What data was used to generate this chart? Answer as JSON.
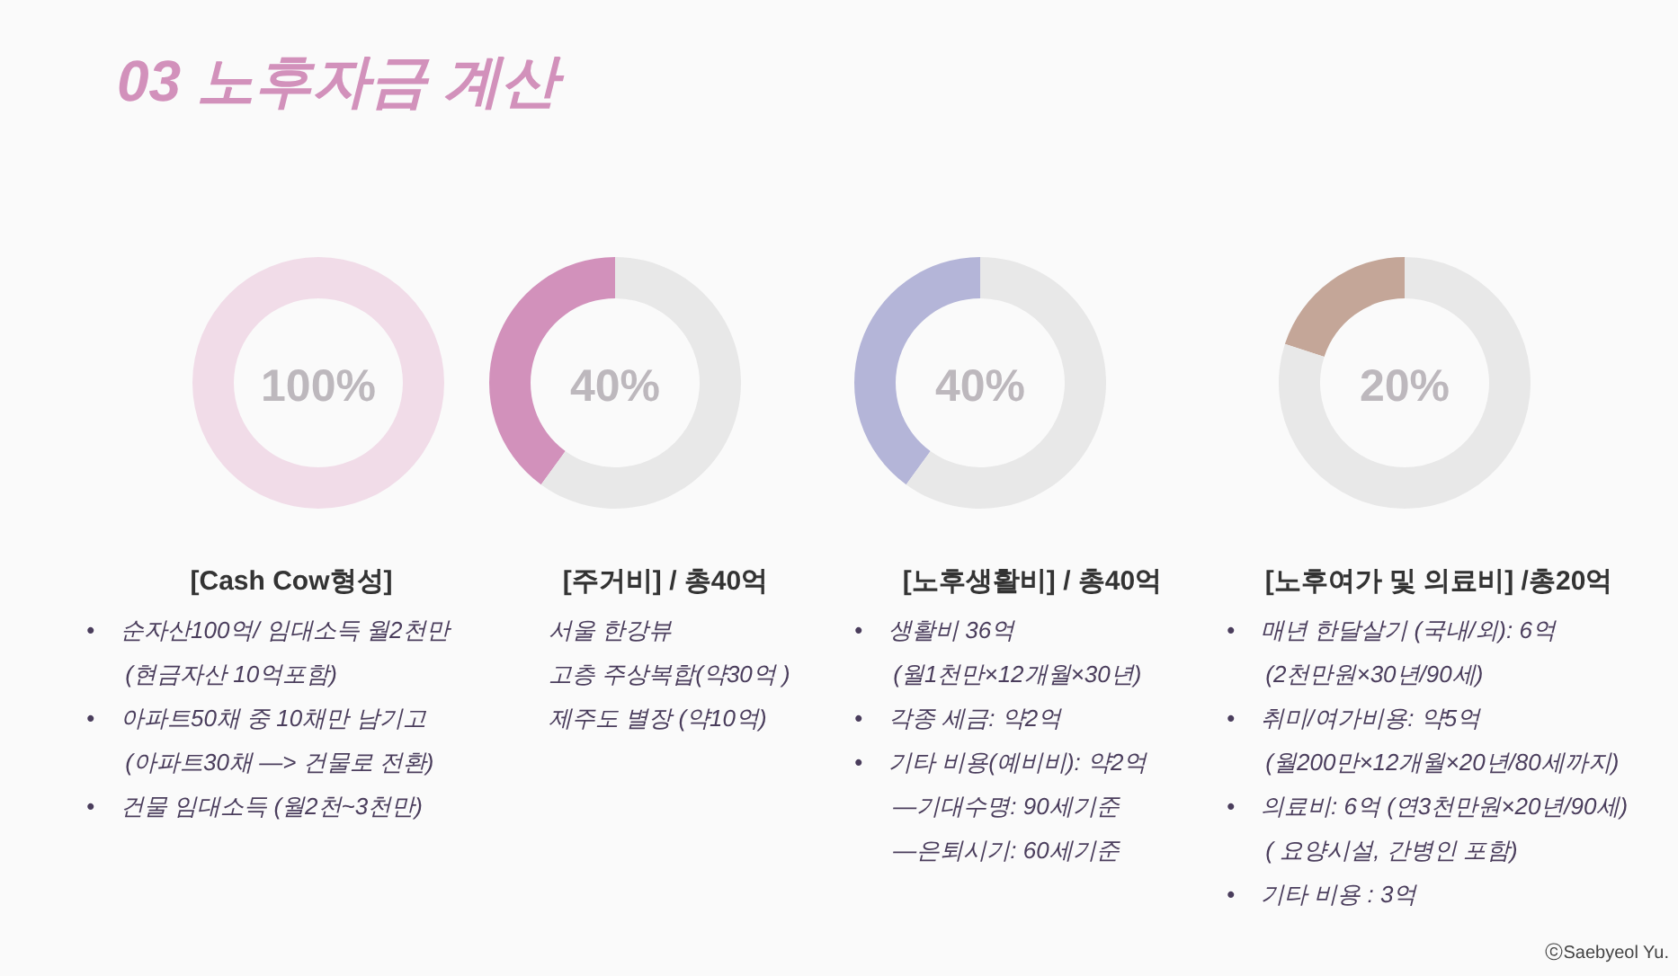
{
  "chart_data": [
    {
      "type": "donut",
      "title": "[Cash Cow형성]",
      "categories": [
        null
      ],
      "values": [
        100
      ],
      "colors": [
        "#f1dce8"
      ],
      "annotations": [
        "100%",
        "03 노후자금 계산",
        "•    순자산100억/ 임대소득 월2천만",
        "      (현금자산 10억포함)",
        "•    아파트50채 중 10채만 남기고",
        "      (아파트30채 —> 건물로 전환)",
        "•    건물 임대소득 (월2천~3천만)"
      ]
    },
    {
      "type": "donut",
      "title": "[주거비] / 총40억",
      "categories": [
        null,
        null
      ],
      "values": [
        40,
        60
      ],
      "colors": [
        "#d291bb",
        "#e8e8e8"
      ],
      "annotations": [
        "40%",
        "서울 한강뷰",
        "고층 주상복합(약30억 )",
        "제주도 별장 (약10억)"
      ]
    },
    {
      "type": "donut",
      "title": "[노후생활비] / 총40억",
      "categories": [
        null,
        null
      ],
      "values": [
        40,
        60
      ],
      "colors": [
        "#b4b5d8",
        "#e8e8e8"
      ],
      "annotations": [
        "40%",
        "•    생활비 36억",
        "      (월1천만×12개월×30년)",
        "•    각종 세금: 약2억",
        "•    기타 비용(예비비): 약2억",
        "      —기대수명: 90세기준",
        "      —은퇴시기: 60세기준"
      ]
    },
    {
      "type": "donut",
      "title": "[노후여가 및 의료비] /총20억",
      "categories": [
        null,
        null
      ],
      "values": [
        20,
        80
      ],
      "colors": [
        "#c4a698",
        "#e8e8e8"
      ],
      "annotations": [
        "20%",
        "•    매년 한달살기 (국내/외): 6억",
        "      (2천만원×30년/90세)",
        "•    취미/여가비용: 약5억",
        "      (월200만×12개월×20년/80세까지)",
        "•    의료비: 6억 (연3천만원×20년/90세)",
        "      ( 요양시설, 간병인 포함)",
        "•    기타 비용 : 3억",
        "ⓒSaebyeol Yu."
      ]
    }
  ]
}
